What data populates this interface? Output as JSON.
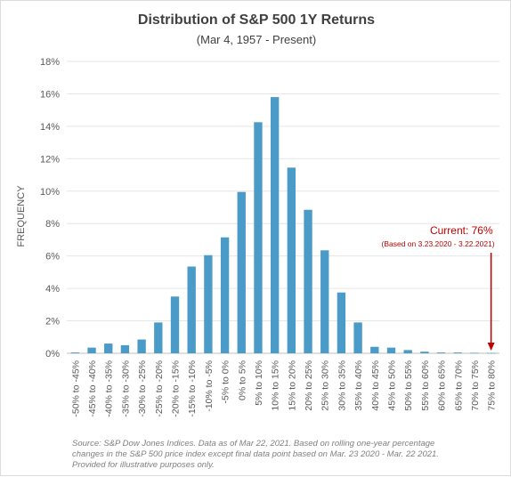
{
  "chart_data": {
    "type": "bar",
    "title": "Distribution of S&P 500 1Y Returns",
    "subtitle": "(Mar 4, 1957 - Present)",
    "ylabel": "FREQUENCY",
    "xlabel": "",
    "ylim": [
      0,
      18
    ],
    "yticks": [
      "0%",
      "2%",
      "4%",
      "6%",
      "8%",
      "10%",
      "12%",
      "14%",
      "16%",
      "18%"
    ],
    "grid": true,
    "categories": [
      "-50% to -45%",
      "-45% to -40%",
      "-40% to -35%",
      "-35% to -30%",
      "-30% to -25%",
      "-25% to -20%",
      "-20% to -15%",
      "-15% to -10%",
      "-10% to -5%",
      "-5% to 0%",
      "0% to 5%",
      "5% to 10%",
      "10% to 15%",
      "15% to 20%",
      "20% to 25%",
      "25% to 30%",
      "30% to 35%",
      "35% to 40%",
      "40% to 45%",
      "45% to 50%",
      "50% to 55%",
      "55% to 60%",
      "60% to 65%",
      "65% to 70%",
      "70% to 75%",
      "75% to 80%"
    ],
    "values": [
      0.05,
      0.35,
      0.6,
      0.5,
      0.85,
      1.9,
      3.5,
      5.35,
      6.05,
      7.15,
      9.95,
      14.25,
      15.8,
      11.45,
      8.85,
      6.35,
      3.75,
      1.9,
      0.4,
      0.35,
      0.2,
      0.1,
      0.05,
      0.05,
      0.03,
      0.02
    ],
    "bar_color": "#4a9bc7",
    "annotation": {
      "label": "Current: 76%",
      "sublabel": "(Based on 3.23.2020 - 3.22.2021)",
      "category": "75% to 80%",
      "color": "#c00000"
    }
  },
  "source_note": [
    "Source: S&P Dow Jones Indices.  Data as of Mar 22, 2021.  Based on rolling one-year percentage",
    "changes in the S&P 500 price index except final data point based on Mar. 23 2020 - Mar. 22 2021.",
    "Provided for illustrative purposes only."
  ]
}
